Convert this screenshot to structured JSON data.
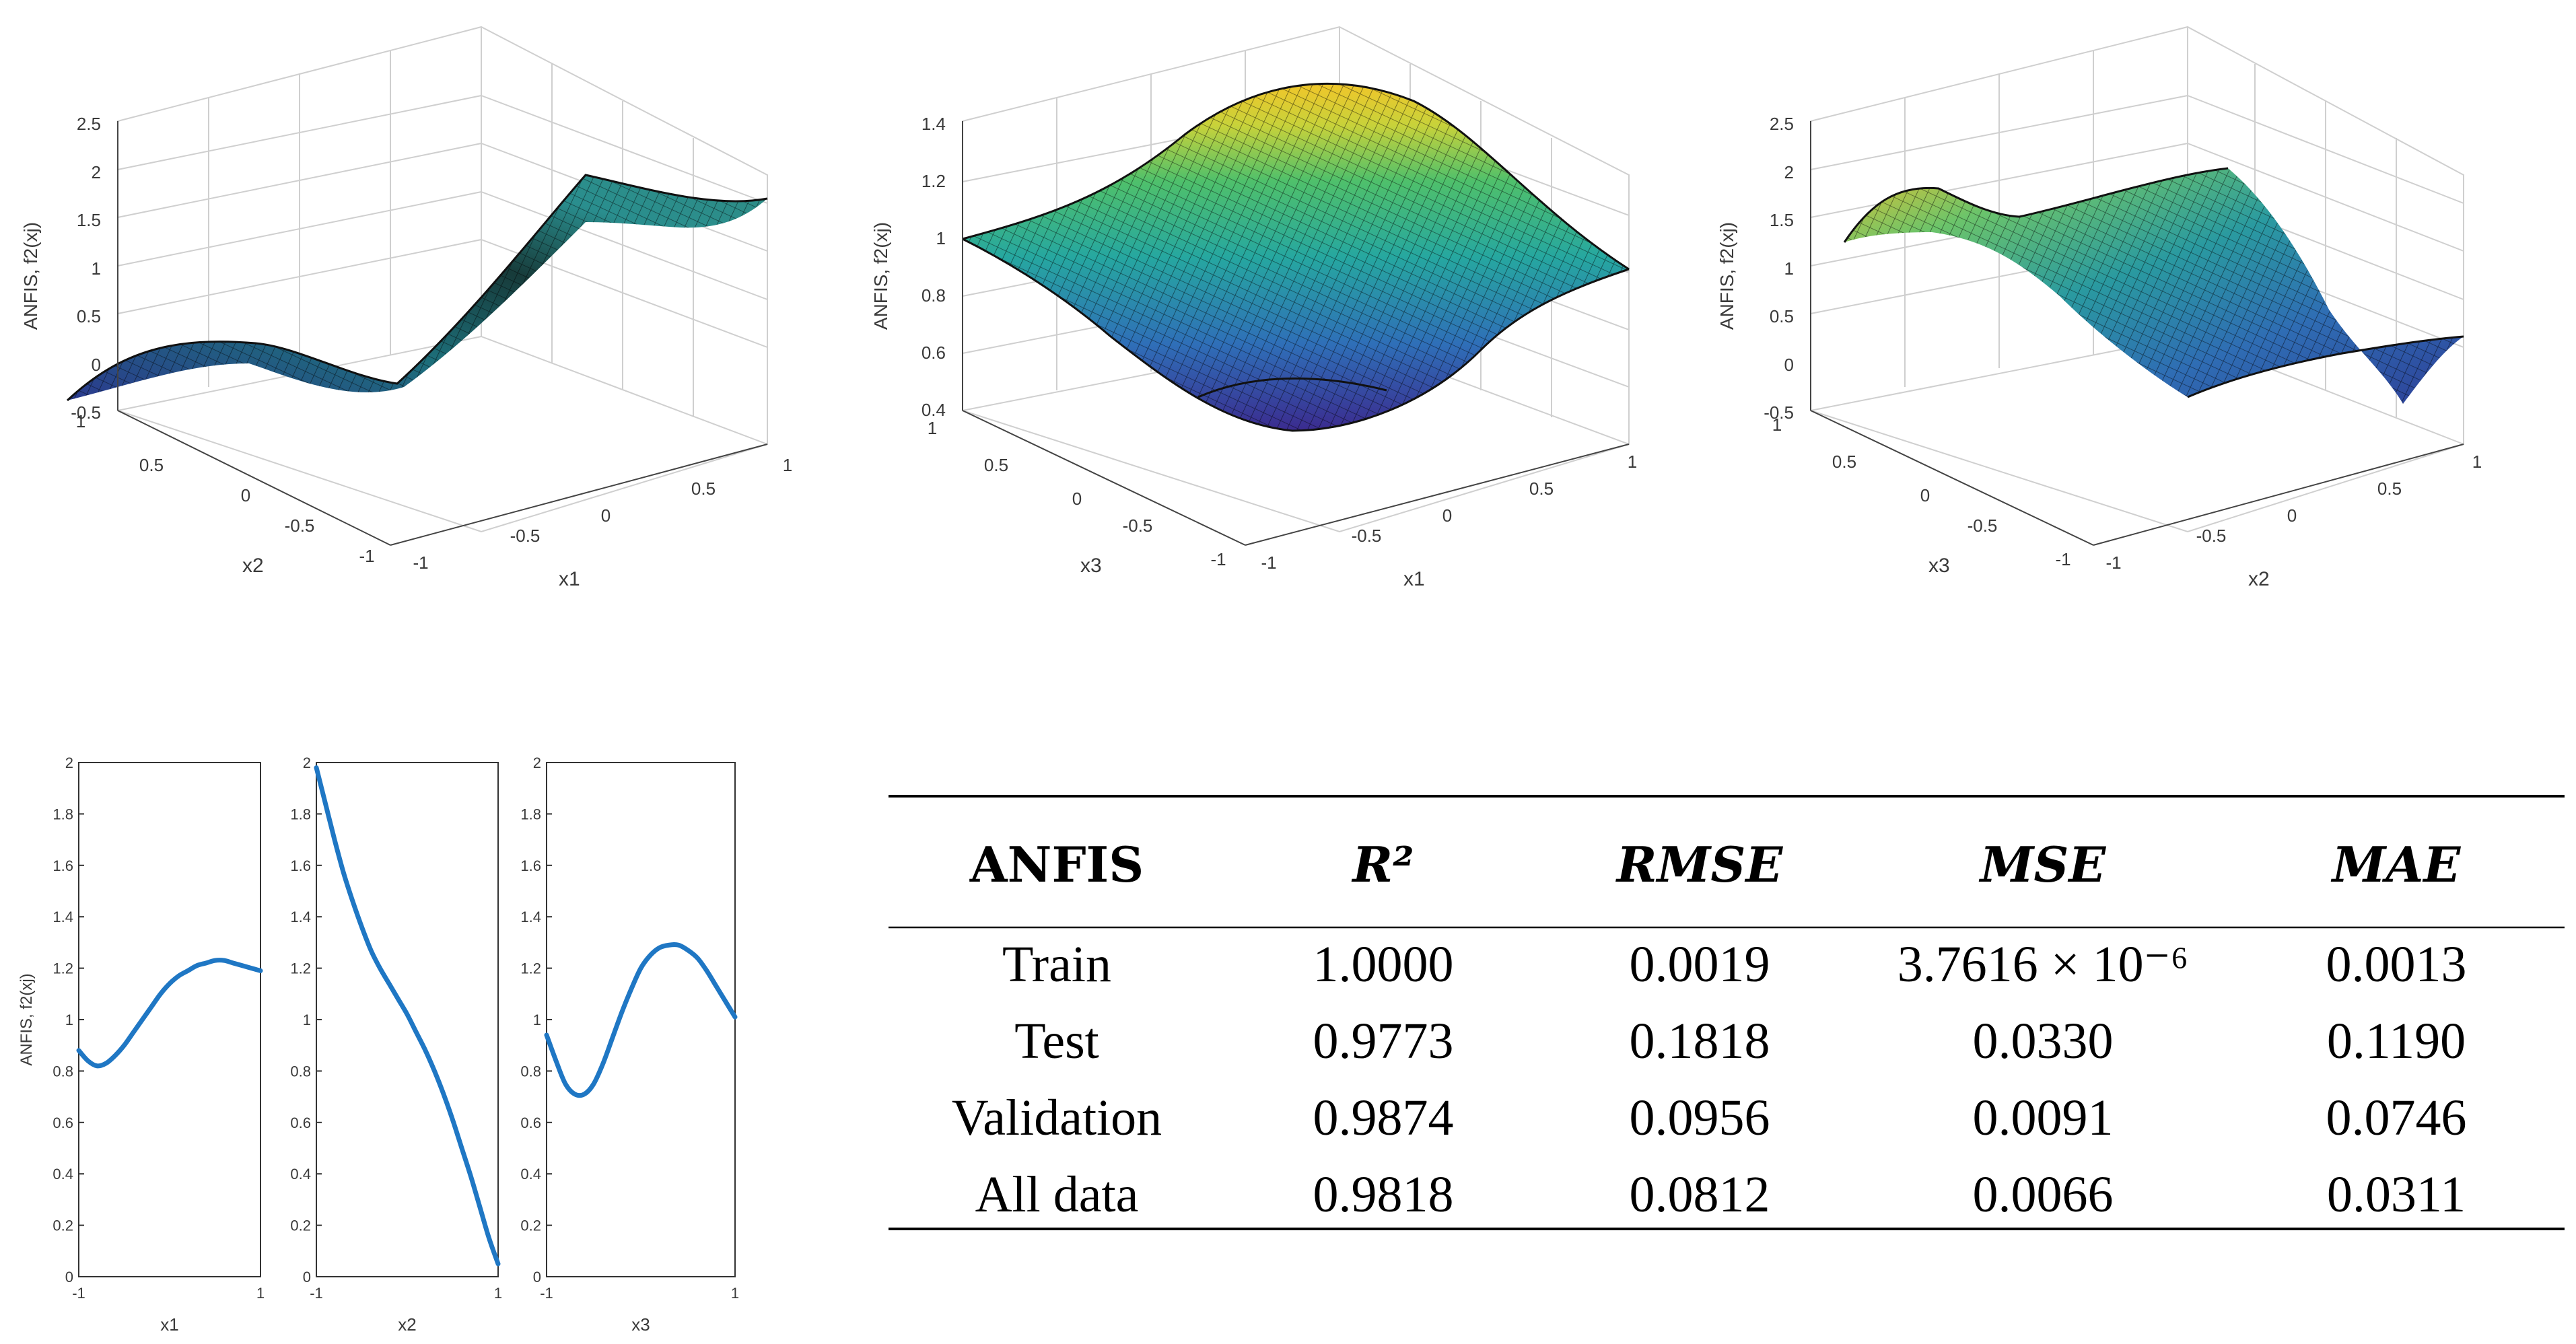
{
  "surfaces": [
    {
      "id": "s1",
      "zlabel": "ANFIS, f2(xj)",
      "xlabel": "x1",
      "ylabel": "x2",
      "zticks": [
        "-0.5",
        "0",
        "0.5",
        "1",
        "1.5",
        "2",
        "2.5"
      ],
      "xticks": [
        "-1",
        "-0.5",
        "0",
        "0.5",
        "1"
      ],
      "yticks": [
        "-1",
        "-0.5",
        "0",
        "0.5",
        "1"
      ]
    },
    {
      "id": "s2",
      "zlabel": "ANFIS, f2(xj)",
      "xlabel": "x1",
      "ylabel": "x3",
      "zticks": [
        "0.4",
        "0.6",
        "0.8",
        "1",
        "1.2",
        "1.4"
      ],
      "xticks": [
        "-1",
        "-0.5",
        "0",
        "0.5",
        "1"
      ],
      "yticks": [
        "-1",
        "-0.5",
        "0",
        "0.5",
        "1"
      ]
    },
    {
      "id": "s3",
      "zlabel": "ANFIS, f2(xj)",
      "xlabel": "x2",
      "ylabel": "x3",
      "zticks": [
        "-0.5",
        "0",
        "0.5",
        "1",
        "1.5",
        "2",
        "2.5"
      ],
      "xticks": [
        "-1",
        "-0.5",
        "0",
        "0.5",
        "1"
      ],
      "yticks": [
        "-1",
        "-0.5",
        "0",
        "0.5",
        "1"
      ]
    }
  ],
  "chart_data": [
    {
      "type": "line",
      "panel": "x1",
      "ylabel": "ANFIS, f2(xj)",
      "xlabel": "x1",
      "xlim": [
        -1,
        1
      ],
      "ylim": [
        0,
        2
      ],
      "xticks": [
        "-1",
        "1"
      ],
      "yticks": [
        "0",
        "0.2",
        "0.4",
        "0.6",
        "0.8",
        "1",
        "1.2",
        "1.4",
        "1.6",
        "1.8",
        "2"
      ],
      "color": "#1f77c4",
      "x": [
        -1,
        -0.9,
        -0.8,
        -0.7,
        -0.6,
        -0.5,
        -0.4,
        -0.3,
        -0.2,
        -0.1,
        0,
        0.1,
        0.2,
        0.3,
        0.4,
        0.5,
        0.6,
        0.7,
        0.8,
        0.9,
        1
      ],
      "y": [
        0.88,
        0.84,
        0.82,
        0.83,
        0.86,
        0.9,
        0.95,
        1.0,
        1.05,
        1.1,
        1.14,
        1.17,
        1.19,
        1.21,
        1.22,
        1.23,
        1.23,
        1.22,
        1.21,
        1.2,
        1.19
      ]
    },
    {
      "type": "line",
      "panel": "x2",
      "ylabel": "",
      "xlabel": "x2",
      "xlim": [
        -1,
        1
      ],
      "ylim": [
        0,
        2
      ],
      "xticks": [
        "-1",
        "1"
      ],
      "yticks": [
        "0",
        "0.2",
        "0.4",
        "0.6",
        "0.8",
        "1",
        "1.2",
        "1.4",
        "1.6",
        "1.8",
        "2"
      ],
      "color": "#1f77c4",
      "x": [
        -1,
        -0.9,
        -0.8,
        -0.7,
        -0.6,
        -0.5,
        -0.4,
        -0.3,
        -0.2,
        -0.1,
        0,
        0.1,
        0.2,
        0.3,
        0.4,
        0.5,
        0.6,
        0.7,
        0.8,
        0.9,
        1
      ],
      "y": [
        1.98,
        1.84,
        1.7,
        1.57,
        1.46,
        1.36,
        1.27,
        1.2,
        1.14,
        1.08,
        1.02,
        0.95,
        0.88,
        0.8,
        0.71,
        0.61,
        0.5,
        0.39,
        0.27,
        0.15,
        0.05
      ]
    },
    {
      "type": "line",
      "panel": "x3",
      "ylabel": "",
      "xlabel": "x3",
      "xlim": [
        -1,
        1
      ],
      "ylim": [
        0,
        2
      ],
      "xticks": [
        "-1",
        "1"
      ],
      "yticks": [
        "0",
        "0.2",
        "0.4",
        "0.6",
        "0.8",
        "1",
        "1.2",
        "1.4",
        "1.6",
        "1.8",
        "2"
      ],
      "color": "#1f77c4",
      "x": [
        -1,
        -0.9,
        -0.8,
        -0.7,
        -0.6,
        -0.5,
        -0.4,
        -0.3,
        -0.2,
        -0.1,
        0,
        0.1,
        0.2,
        0.3,
        0.4,
        0.5,
        0.6,
        0.7,
        0.8,
        0.9,
        1
      ],
      "y": [
        0.94,
        0.84,
        0.75,
        0.71,
        0.71,
        0.75,
        0.83,
        0.93,
        1.03,
        1.12,
        1.2,
        1.25,
        1.28,
        1.29,
        1.29,
        1.27,
        1.24,
        1.19,
        1.13,
        1.07,
        1.01
      ]
    },
    {
      "type": "table",
      "columns": [
        "ANFIS",
        "R²",
        "RMSE",
        "MSE",
        "MAE"
      ],
      "rows": [
        [
          "Train",
          "1.0000",
          "0.0019",
          "3.7616 × 10⁻⁶",
          "0.0013"
        ],
        [
          "Test",
          "0.9773",
          "0.1818",
          "0.0330",
          "0.1190"
        ],
        [
          "Validation",
          "0.9874",
          "0.0956",
          "0.0091",
          "0.0746"
        ],
        [
          "All data",
          "0.9818",
          "0.0812",
          "0.0066",
          "0.0311"
        ]
      ]
    }
  ]
}
